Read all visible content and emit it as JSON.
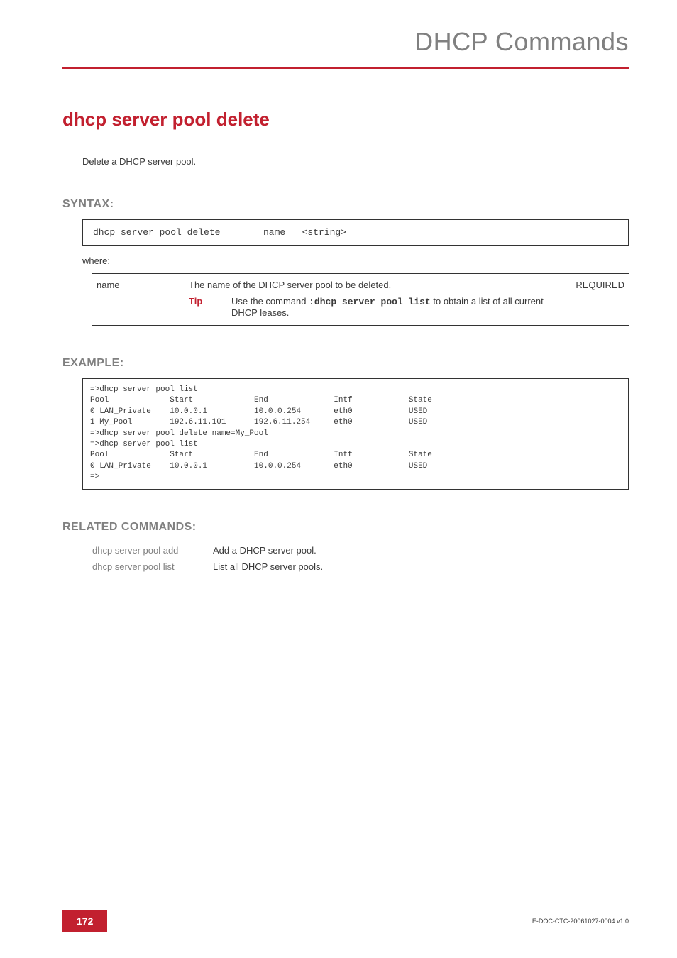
{
  "header": {
    "title": "DHCP Commands"
  },
  "command": {
    "title": "dhcp server pool delete",
    "description": "Delete a DHCP server pool."
  },
  "syntax": {
    "section_label": "SYNTAX:",
    "command": "dhcp server pool delete",
    "args": "name = <string>",
    "where_label": "where:",
    "params": [
      {
        "name": "name",
        "desc_pre": "The name of the DHCP server pool to be deleted.",
        "required": "REQUIRED",
        "tip_label": "Tip",
        "tip_pre": "Use the command ",
        "tip_cmd": ":dhcp server pool list",
        "tip_post": " to obtain a list of all current DHCP leases."
      }
    ]
  },
  "example": {
    "section_label": "EXAMPLE:",
    "lines": "=>dhcp server pool list\nPool             Start             End              Intf            State\n0 LAN_Private    10.0.0.1          10.0.0.254       eth0            USED\n1 My_Pool        192.6.11.101      192.6.11.254     eth0            USED\n=>dhcp server pool delete name=My_Pool\n=>dhcp server pool list\nPool             Start             End              Intf            State\n0 LAN_Private    10.0.0.1          10.0.0.254       eth0            USED\n=>"
  },
  "related": {
    "section_label": "RELATED COMMANDS:",
    "rows": [
      {
        "cmd": "dhcp server pool add",
        "desc": "Add a DHCP server pool."
      },
      {
        "cmd": "dhcp server pool list",
        "desc": "List all DHCP server pools."
      }
    ]
  },
  "footer": {
    "page_number": "172",
    "doc_id": "E-DOC-CTC-20061027-0004 v1.0"
  },
  "colors": {
    "accent": "#c2202f",
    "muted": "#808080",
    "text": "#3a3a3a",
    "background": "#ffffff"
  }
}
